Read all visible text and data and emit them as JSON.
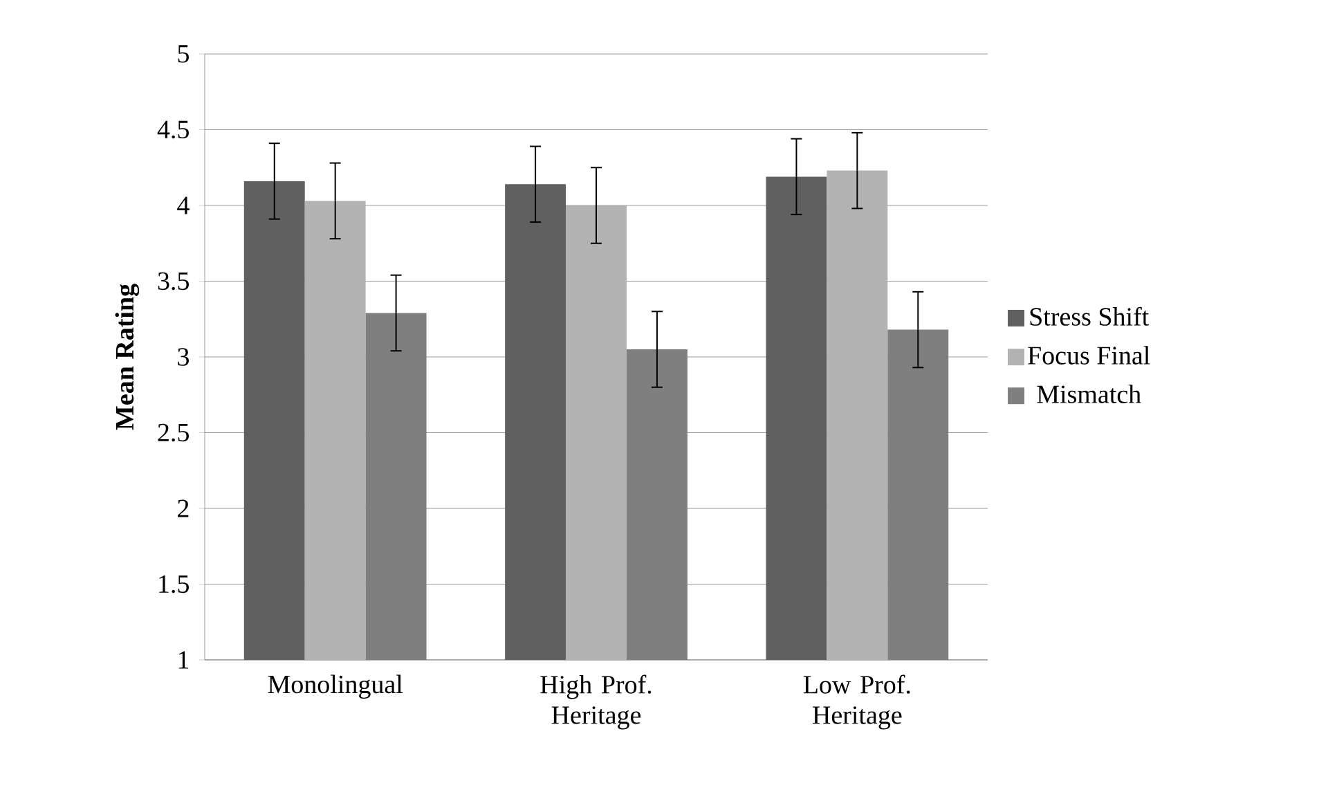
{
  "chart_data": {
    "type": "bar",
    "ylabel": "Mean Rating",
    "categories": [
      "Monolingual",
      "High Prof. Heritage",
      "Low Prof. Heritage"
    ],
    "series": [
      {
        "name": "Stress Shift",
        "color": "#606060",
        "values": [
          4.16,
          4.14,
          4.19
        ],
        "errors": [
          0.25,
          0.25,
          0.25
        ]
      },
      {
        "name": "Focus Final",
        "color": "#b3b3b3",
        "values": [
          4.03,
          4.0,
          4.23
        ],
        "errors": [
          0.25,
          0.25,
          0.25
        ]
      },
      {
        "name": "Mismatch",
        "color": "#7f7f7f",
        "values": [
          3.29,
          3.05,
          3.18
        ],
        "errors": [
          0.25,
          0.25,
          0.25
        ]
      }
    ],
    "ylim": [
      1,
      5
    ],
    "yticks": [
      1,
      1.5,
      2,
      2.5,
      3,
      3.5,
      4,
      4.5,
      5
    ],
    "grid": "y",
    "legend": "right"
  }
}
